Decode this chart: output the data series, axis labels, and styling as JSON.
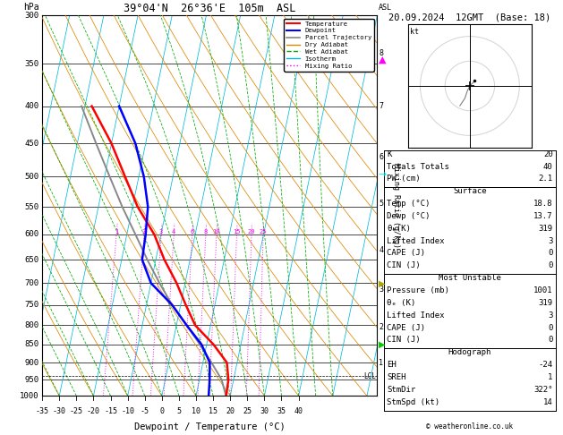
{
  "title_left": "39°04'N  26°36'E  105m  ASL",
  "title_right": "20.09.2024  12GMT  (Base: 18)",
  "xlabel": "Dewpoint / Temperature (°C)",
  "ylabel_left": "hPa",
  "pressure_levels": [
    300,
    350,
    400,
    450,
    500,
    550,
    600,
    650,
    700,
    750,
    800,
    850,
    900,
    950,
    1000
  ],
  "temp_C": [
    18.8,
    18.5,
    17.0,
    12.0,
    5.5,
    1.5,
    -2.5,
    -7.5,
    -12.0,
    -18.5,
    -24.0,
    -30.0,
    -38.0
  ],
  "temp_P": [
    1001,
    950,
    900,
    850,
    800,
    750,
    700,
    650,
    600,
    550,
    500,
    450,
    400
  ],
  "dewp_C": [
    13.7,
    13.0,
    12.0,
    8.5,
    3.0,
    -2.5,
    -10.0,
    -14.0,
    -14.5,
    -15.5,
    -18.5,
    -23.0,
    -30.0
  ],
  "dewp_P": [
    1001,
    950,
    900,
    850,
    800,
    750,
    700,
    650,
    600,
    550,
    500,
    450,
    400
  ],
  "parcel_C": [
    18.8,
    16.5,
    12.5,
    8.0,
    3.0,
    -2.5,
    -7.5,
    -12.5,
    -17.5,
    -23.0,
    -28.5,
    -34.5,
    -41.0
  ],
  "parcel_P": [
    1001,
    950,
    900,
    850,
    800,
    750,
    700,
    650,
    600,
    550,
    500,
    450,
    400
  ],
  "temp_color": "#ff0000",
  "dewp_color": "#0000ff",
  "parcel_color": "#888888",
  "dry_adiabat_color": "#dd8800",
  "wet_adiabat_color": "#00aa00",
  "isotherm_color": "#00bbdd",
  "mixing_ratio_color": "#ee00ee",
  "xmin": -35,
  "xmax": 40,
  "pmin": 300,
  "pmax": 1000,
  "skew_factor": 23,
  "km_ticks": [
    1,
    2,
    3,
    4,
    5,
    6,
    7,
    8
  ],
  "km_pressures": [
    900,
    805,
    715,
    630,
    545,
    470,
    400,
    338
  ],
  "lcl_pressure": 940,
  "mixing_ratio_lines": [
    1,
    2,
    3,
    4,
    6,
    8,
    10,
    15,
    20,
    25
  ],
  "stats": {
    "K": 20,
    "TT": 40,
    "PW": 2.1,
    "surf_temp": 18.8,
    "surf_dewp": 13.7,
    "surf_theta_e": 319,
    "surf_li": 3,
    "surf_cape": 0,
    "surf_cin": 0,
    "mu_pressure": 1001,
    "mu_theta_e": 319,
    "mu_li": 3,
    "mu_cape": 0,
    "mu_cin": 0,
    "EH": -24,
    "SREH": 1,
    "StmDir": 322,
    "StmSpd": 14
  }
}
